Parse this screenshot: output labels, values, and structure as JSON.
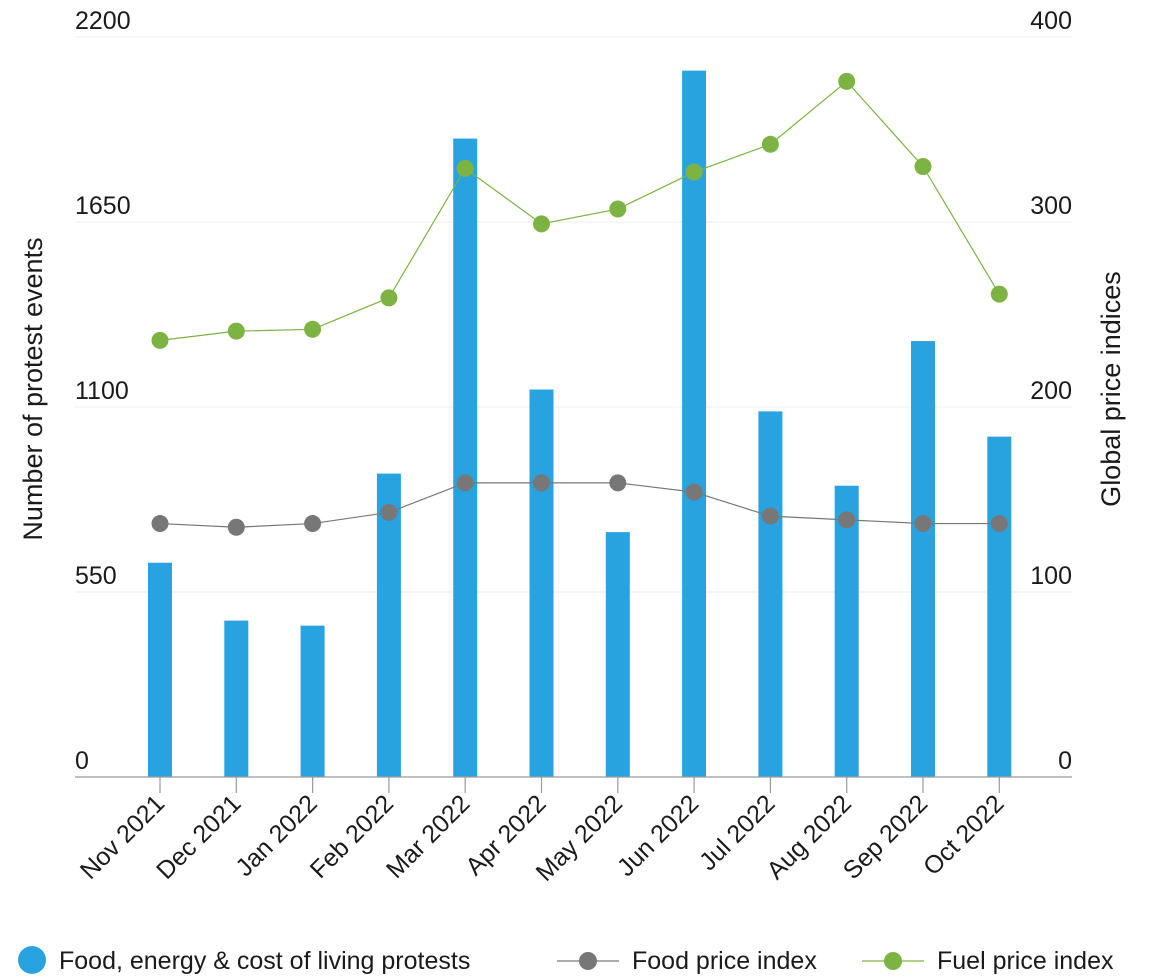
{
  "chart_data": {
    "type": "bar",
    "categories": [
      "Nov 2021",
      "Dec 2021",
      "Jan 2022",
      "Feb 2022",
      "Mar 2022",
      "Apr 2022",
      "May 2022",
      "Jun 2022",
      "Jul 2022",
      "Aug 2022",
      "Sep 2022",
      "Oct 2022"
    ],
    "series": [
      {
        "name": "Food, energy & cost of living protests",
        "type": "bar",
        "axis": "left",
        "color": "#29a3e0",
        "values": [
          637,
          465,
          450,
          902,
          1898,
          1152,
          728,
          2100,
          1087,
          866,
          1296,
          1012
        ]
      },
      {
        "name": "Food price index",
        "type": "line",
        "axis": "right",
        "color": "#777777",
        "values": [
          137,
          135,
          137,
          143,
          159,
          159,
          159,
          154,
          141,
          139,
          137,
          137
        ]
      },
      {
        "name": "Fuel price index",
        "type": "line",
        "axis": "right",
        "color": "#7cb342",
        "values": [
          236,
          241,
          242,
          259,
          329,
          299,
          307,
          327,
          342,
          376,
          330,
          261
        ]
      }
    ],
    "ylabel": "Number of protest events",
    "y2label": "Global price indices",
    "ylim": [
      0,
      2200
    ],
    "y2lim": [
      0,
      400
    ],
    "yticks": [
      "0",
      "550",
      "1100",
      "1650",
      "2200"
    ],
    "y2ticks": [
      "0",
      "100",
      "200",
      "300",
      "400"
    ],
    "grid": true,
    "legend_position": "bottom"
  }
}
